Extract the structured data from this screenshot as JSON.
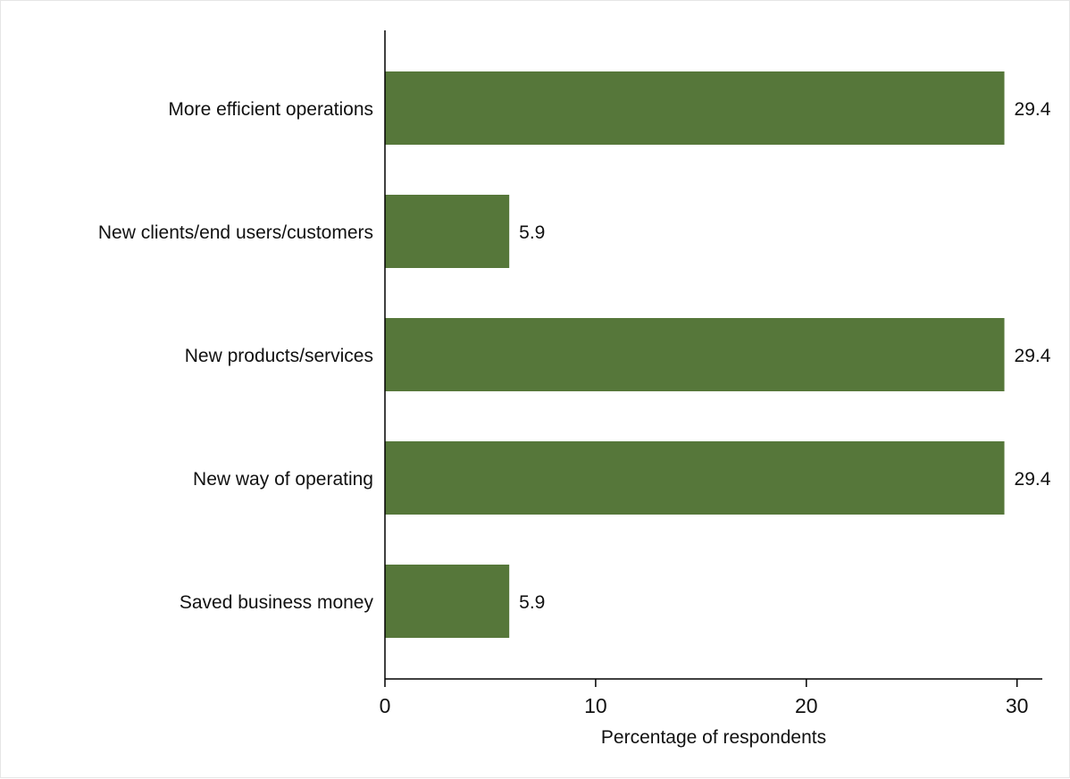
{
  "chart_data": {
    "type": "bar",
    "orientation": "horizontal",
    "categories": [
      "More efficient operations",
      "New clients/end users/customers",
      "New products/services",
      "New way of operating",
      "Saved business money"
    ],
    "values": [
      29.4,
      5.9,
      29.4,
      29.4,
      5.9
    ],
    "value_labels": [
      "29.4",
      "5.9",
      "29.4",
      "29.4",
      "5.9"
    ],
    "title": "",
    "xlabel": "Percentage of respondents",
    "ylabel": "",
    "xlim": [
      0,
      31.2
    ],
    "xticks": [
      0,
      10,
      20,
      30
    ],
    "xtick_labels": [
      "0",
      "10",
      "20",
      "30"
    ],
    "grid": false,
    "legend": "none",
    "bar_color": "#56773a"
  }
}
